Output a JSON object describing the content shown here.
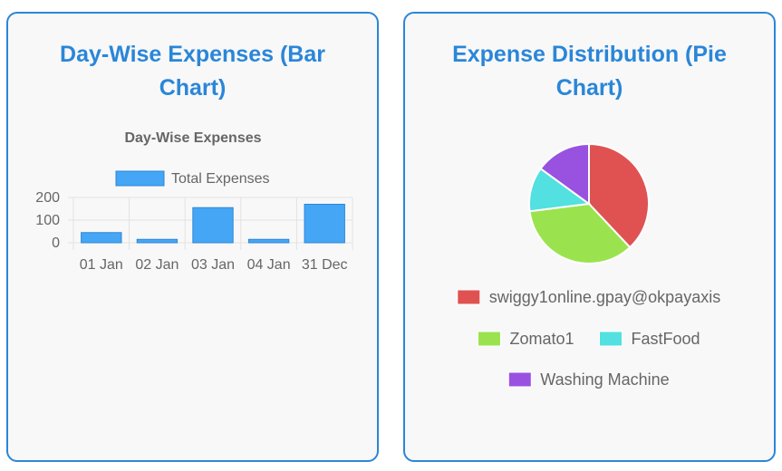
{
  "cards": {
    "bar": {
      "heading": "Day-Wise Expenses (Bar Chart)"
    },
    "pie": {
      "heading": "Expense Distribution (Pie Chart)"
    }
  },
  "chart_data": [
    {
      "type": "bar",
      "title": "Day-Wise Expenses",
      "categories": [
        "01 Jan",
        "02 Jan",
        "03 Jan",
        "04 Jan",
        "31 Dec"
      ],
      "series": [
        {
          "name": "Total Expenses",
          "values": [
            45,
            15,
            155,
            15,
            170
          ]
        }
      ],
      "ylim": [
        0,
        200
      ],
      "yticks": [
        "200",
        "100",
        "0"
      ],
      "grid": true,
      "legend": "top",
      "colors": {
        "fill": "#46a6f6",
        "border": "#2a86d8"
      }
    },
    {
      "type": "pie",
      "labels": [
        "swiggy1online.gpay@okpayaxis",
        "Zomato1",
        "FastFood",
        "Washing Machine"
      ],
      "values": [
        38,
        35,
        12,
        15
      ],
      "colors": [
        "#e05252",
        "#9ae34f",
        "#52e0e0",
        "#9952e0"
      ],
      "legend": "bottom"
    }
  ]
}
